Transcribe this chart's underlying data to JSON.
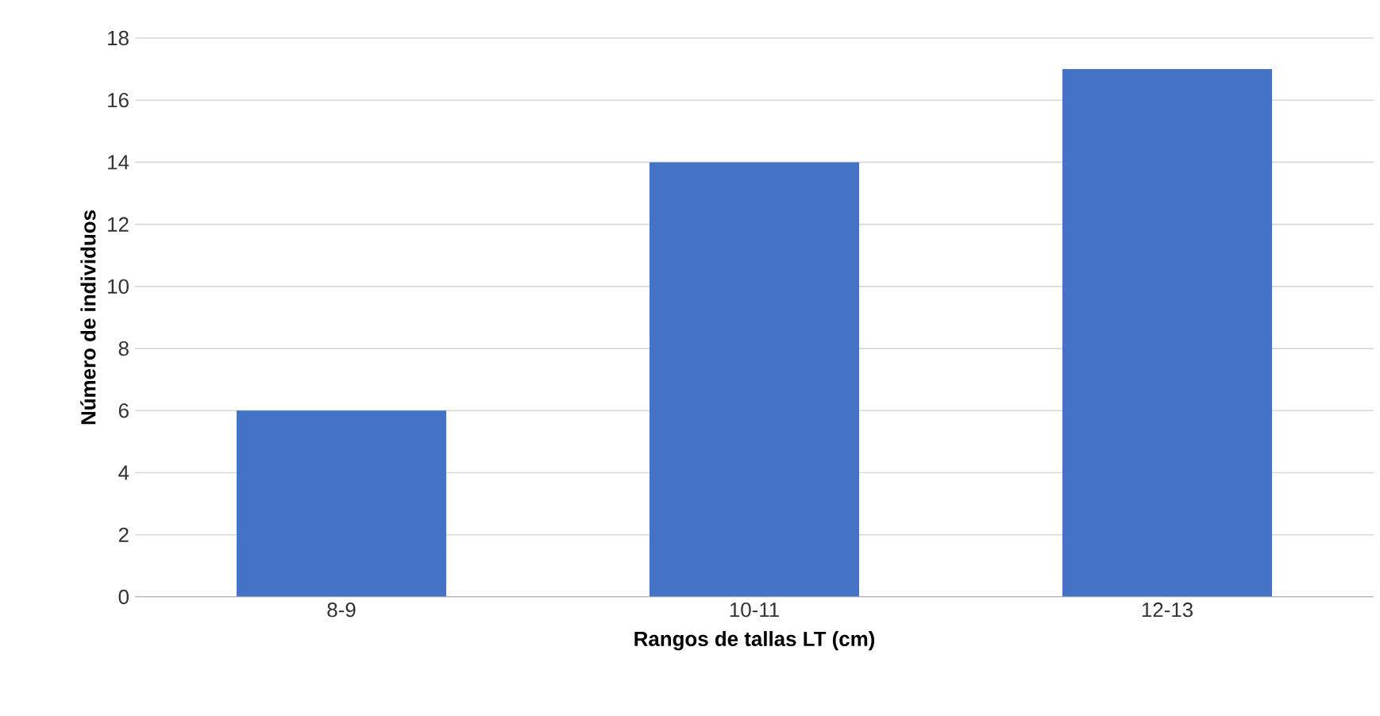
{
  "chart_data": {
    "type": "bar",
    "xlabel": "Rangos de tallas LT (cm)",
    "ylabel": "Número de individuos",
    "categories": [
      "8-9",
      "10-11",
      "12-13"
    ],
    "values": [
      6,
      14,
      17
    ],
    "color": "#4472c4",
    "ylim": [
      0,
      18
    ],
    "yticks": [
      0,
      2,
      4,
      6,
      8,
      10,
      12,
      14,
      16,
      18
    ],
    "grid": "y"
  }
}
